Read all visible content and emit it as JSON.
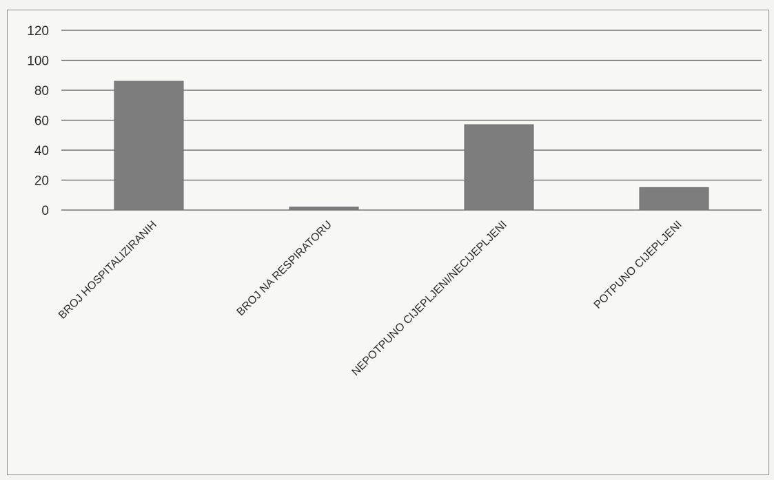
{
  "chart_data": {
    "type": "bar",
    "categories": [
      "BROJ HOSPITALIZIRANIH",
      "BROJ NA RESPIRATORU",
      "NEPOTPUNO CIJEPLJENI/NECIJEPLJENI",
      "POTPUNO CIJEPLJENI"
    ],
    "values": [
      86,
      2,
      57,
      15
    ],
    "ylim": [
      0,
      120
    ],
    "yticks": [
      0,
      20,
      40,
      60,
      80,
      100,
      120
    ],
    "grid": true,
    "legend": "none",
    "colors": {
      "bar": "#7d7d7d",
      "grid": "#5c5c5c",
      "text": "#2b2b2b"
    }
  }
}
